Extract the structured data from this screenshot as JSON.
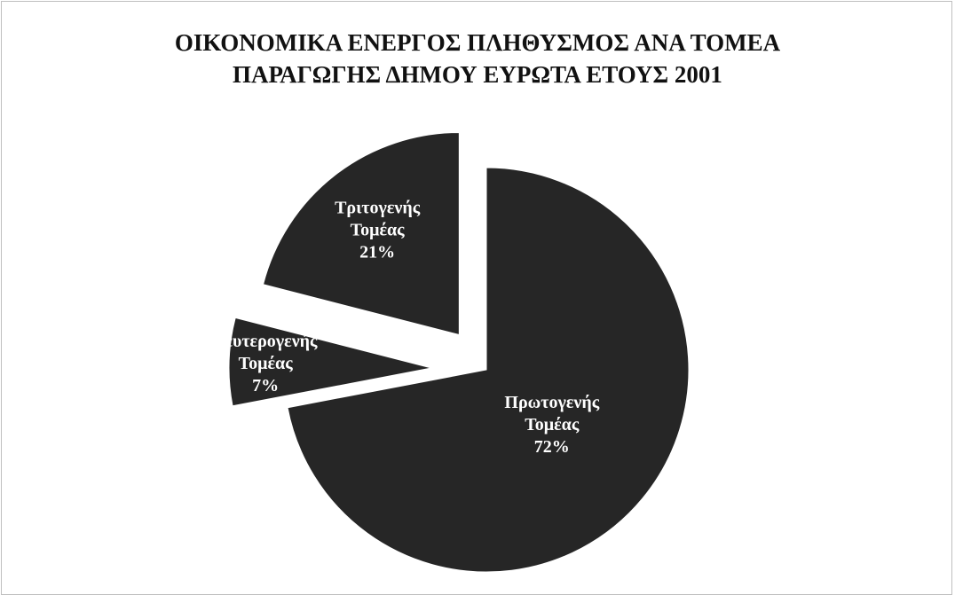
{
  "chart_data": {
    "type": "pie",
    "title_lines": [
      "ΟΙΚΟΝΟΜΙΚΑ ΕΝΕΡΓΟΣ ΠΛΗΘΥΣΜΟΣ ΑΝΑ ΤΟΜΕΑ",
      "ΠΑΡΑΓΩΓΗΣ ΔΗΜΟΥ ΕΥΡΩΤΑ ΕΤΟΥΣ 2001"
    ],
    "slices": [
      {
        "label": "Πρωτογενής Τομέας",
        "label_lines": [
          "Πρωτογενής",
          "Τομέας"
        ],
        "value": 72,
        "display_value": "72%",
        "color": "#262626"
      },
      {
        "label": "Δευτερογενής Τομέας",
        "label_lines": [
          "Δευτερογενής",
          "Τομέας"
        ],
        "value": 7,
        "display_value": "7%",
        "color": "#262626"
      },
      {
        "label": "Τριτογενής Τομέας",
        "label_lines": [
          "Τριτογενής",
          "Τομέας"
        ],
        "value": 21,
        "display_value": "21%",
        "color": "#262626"
      }
    ],
    "exploded": true,
    "legend": "none",
    "colors": {
      "slice": "#262626",
      "label": "#ffffff",
      "border": "#bfbfbf"
    }
  }
}
